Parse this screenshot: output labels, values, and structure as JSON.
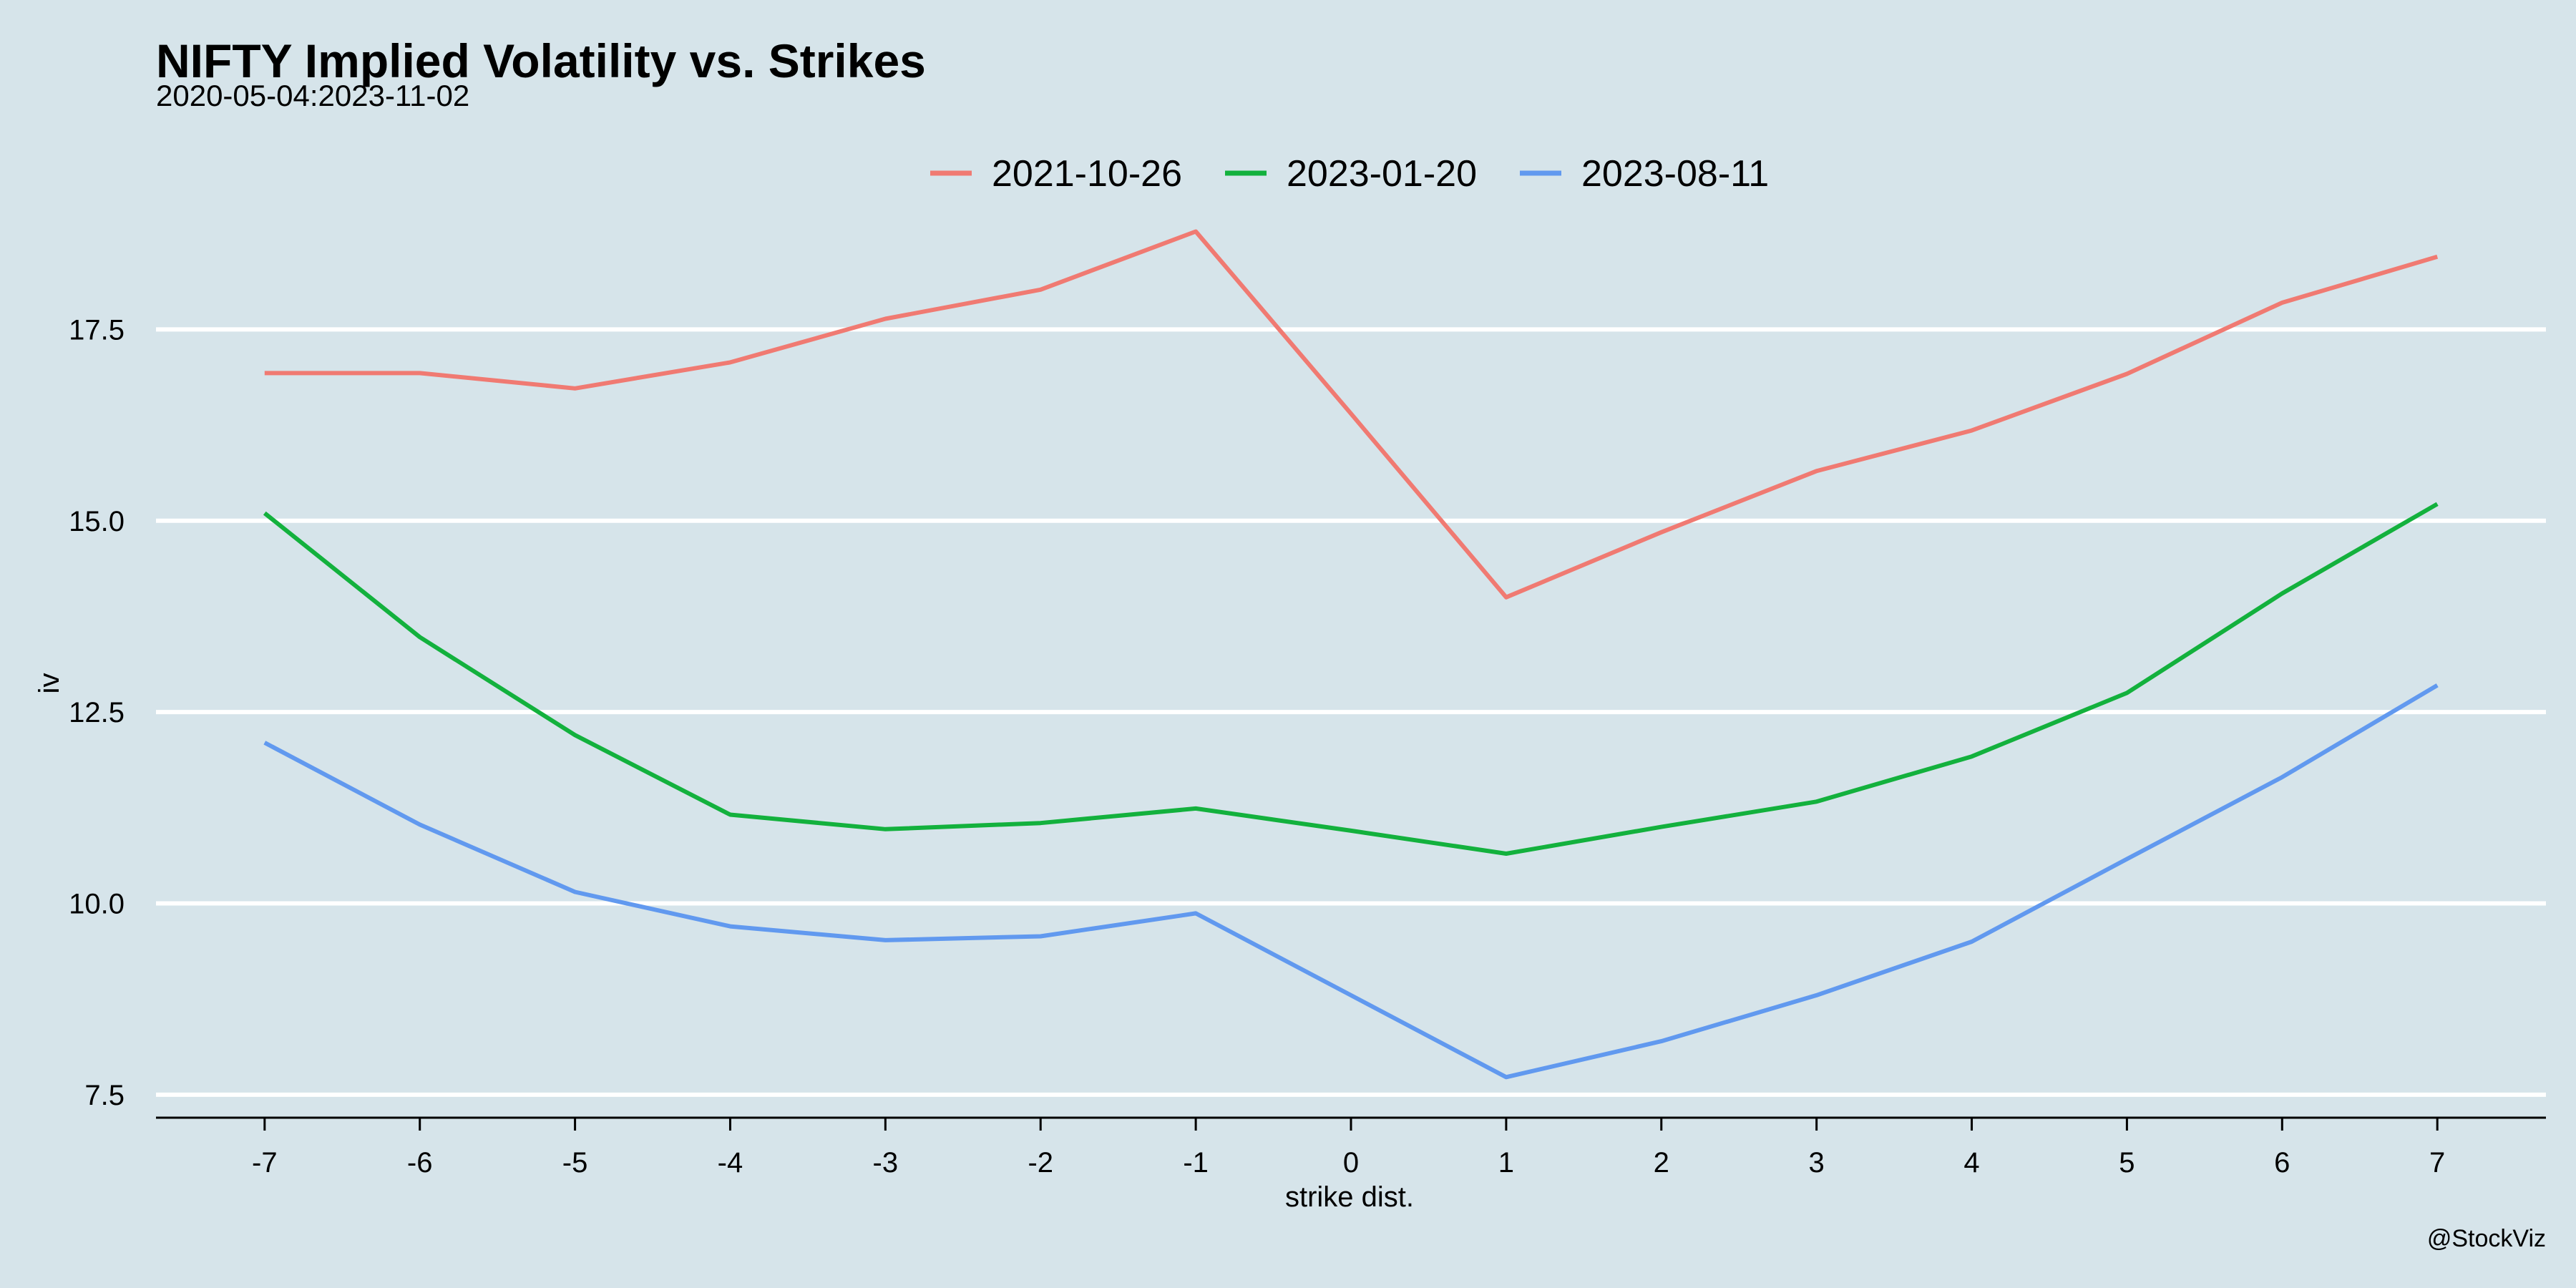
{
  "chart_data": {
    "type": "line",
    "title": "NIFTY Implied Volatility vs. Strikes",
    "subtitle": "2020-05-04:2023-11-02",
    "xlabel": "strike dist.",
    "ylabel": "iv",
    "caption": "@StockViz",
    "x": [
      -7,
      -6,
      -5,
      -4,
      -3,
      -2,
      -1,
      0,
      1,
      2,
      3,
      4,
      5,
      6,
      7
    ],
    "x_tick_labels": [
      "-7",
      "-6",
      "-5",
      "-4",
      "-3",
      "-2",
      "-1",
      "0",
      "1",
      "2",
      "3",
      "4",
      "5",
      "6",
      "7"
    ],
    "y_ticks": [
      7.5,
      10.0,
      12.5,
      15.0,
      17.5
    ],
    "y_tick_labels": [
      "7.5",
      "10.0",
      "12.5",
      "15.0",
      "17.5"
    ],
    "ylim": [
      7.2,
      19.0
    ],
    "xlim": [
      -7.7,
      7.7
    ],
    "grid": "horizontal",
    "legend_position": "top",
    "series": [
      {
        "name": "2021-10-26",
        "color": "#f07a72",
        "values": [
          16.93,
          16.93,
          16.73,
          17.07,
          17.64,
          18.02,
          18.78,
          16.4,
          14.0,
          14.85,
          15.65,
          16.18,
          16.92,
          17.85,
          18.45
        ]
      },
      {
        "name": "2023-01-20",
        "color": "#13b13d",
        "values": [
          15.1,
          13.48,
          12.2,
          11.16,
          10.97,
          11.05,
          11.24,
          10.95,
          10.65,
          11.0,
          11.33,
          11.92,
          12.75,
          14.05,
          15.22
        ]
      },
      {
        "name": "2023-08-11",
        "color": "#6199ef",
        "values": [
          12.1,
          11.03,
          10.15,
          9.7,
          9.52,
          9.57,
          9.87,
          8.8,
          7.73,
          8.2,
          8.8,
          9.5,
          10.58,
          11.65,
          12.85
        ]
      }
    ]
  }
}
